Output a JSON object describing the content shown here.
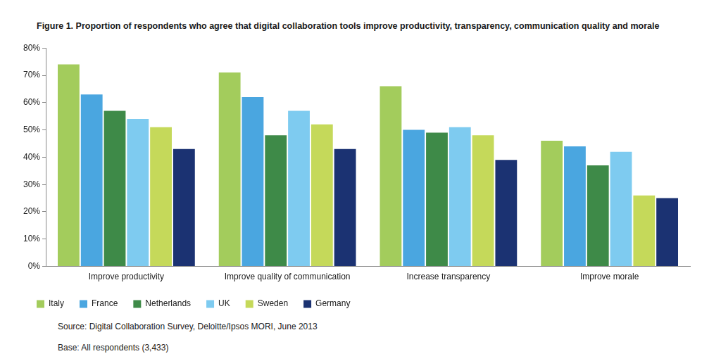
{
  "chart_data": {
    "type": "bar",
    "title": "Figure 1. Proportion of respondents who agree that digital collaboration tools improve productivity, transparency, communication quality and morale",
    "annotations": [
      "Source: Digital Collaboration Survey, Deloitte/Ipsos MORI, June 2013",
      "Base: All respondents (3,433)"
    ],
    "categories": [
      "Improve productivity",
      "Improve quality of communication",
      "Increase transparency",
      "Improve morale"
    ],
    "series": [
      {
        "name": "Italy",
        "color": "#a3cc5c",
        "values": [
          74,
          71,
          66,
          46
        ]
      },
      {
        "name": "France",
        "color": "#4aa6e0",
        "values": [
          63,
          62,
          50,
          44
        ]
      },
      {
        "name": "Netherlands",
        "color": "#3e8a48",
        "values": [
          57,
          48,
          49,
          37
        ]
      },
      {
        "name": "UK",
        "color": "#7ecbf0",
        "values": [
          54,
          57,
          51,
          42
        ]
      },
      {
        "name": "Sweden",
        "color": "#c5d95a",
        "values": [
          51,
          52,
          48,
          26
        ]
      },
      {
        "name": "Germany",
        "color": "#1b3272",
        "values": [
          43,
          43,
          39,
          25
        ]
      }
    ],
    "ylim": [
      0,
      80
    ],
    "yticks": [
      {
        "value": 0,
        "label": "0%"
      },
      {
        "value": 10,
        "label": "10%"
      },
      {
        "value": 20,
        "label": "20%"
      },
      {
        "value": 30,
        "label": "30%"
      },
      {
        "value": 40,
        "label": "40%"
      },
      {
        "value": 50,
        "label": "50%"
      },
      {
        "value": 60,
        "label": "60%"
      },
      {
        "value": 70,
        "label": "70%"
      },
      {
        "value": 80,
        "label": "80%"
      }
    ],
    "grid": false,
    "legend": "bottom"
  }
}
